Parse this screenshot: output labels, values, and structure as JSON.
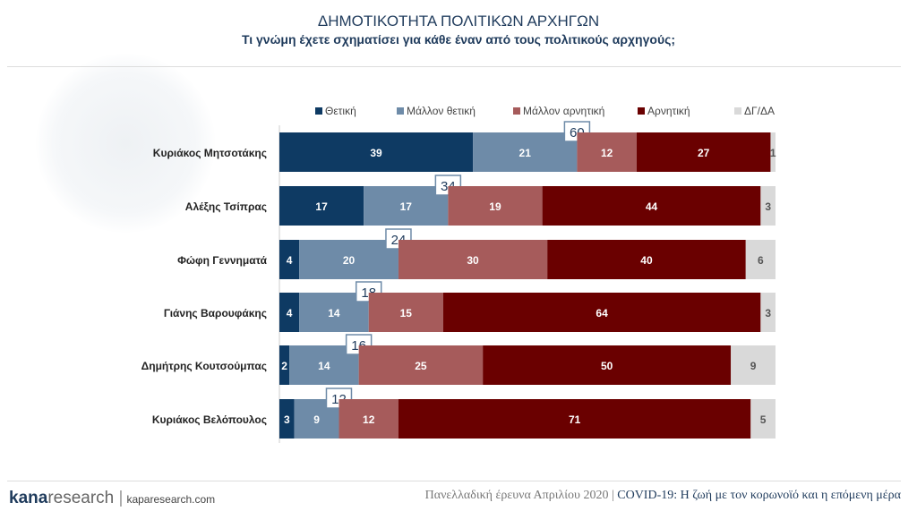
{
  "header": {
    "title": "ΔΗΜΟΤΙΚΟΤΗΤΑ ΠΟΛΙΤΙΚΩΝ ΑΡΧΗΓΩΝ",
    "subtitle": "Τι γνώμη έχετε σχηματίσει για κάθε έναν από τους πολιτικούς αρχηγούς;"
  },
  "footer": {
    "logo": "kanaresearch",
    "site": "kaparesearch.com",
    "survey": "Πανελλαδική έρευνα Απριλίου 2020 |",
    "project": "COVID-19: Η ζωή με τον κορωνοϊό και η επόμενη μέρα"
  },
  "chart_data": {
    "type": "bar",
    "orientation": "horizontal",
    "stacked": true,
    "legend_position": "top",
    "categories": [
      "Κυριάκος Μητσοτάκης",
      "Αλέξης Τσίπρας",
      "Φώφη Γεννηματά",
      "Γιάνης Βαρουφάκης",
      "Δημήτρης Κουτσούμπας",
      "Κυριάκος Βελόπουλος"
    ],
    "series": [
      {
        "name": "Θετική",
        "color": "#0e3a63",
        "values": [
          39,
          17,
          4,
          4,
          2,
          3
        ]
      },
      {
        "name": "Μάλλον θετική",
        "color": "#6e8ba8",
        "values": [
          21,
          17,
          20,
          14,
          14,
          9
        ]
      },
      {
        "name": "Μάλλον αρνητική",
        "color": "#a65b5b",
        "values": [
          12,
          19,
          30,
          15,
          25,
          12
        ]
      },
      {
        "name": "Αρνητική",
        "color": "#6a0000",
        "values": [
          27,
          44,
          40,
          64,
          50,
          71
        ]
      },
      {
        "name": "ΔΓ/ΔΑ",
        "color": "#d9d9d9",
        "values": [
          1,
          3,
          6,
          3,
          9,
          5
        ]
      }
    ],
    "positive_totals": [
      60,
      34,
      24,
      18,
      16,
      12
    ],
    "xlim": [
      0,
      100
    ]
  }
}
